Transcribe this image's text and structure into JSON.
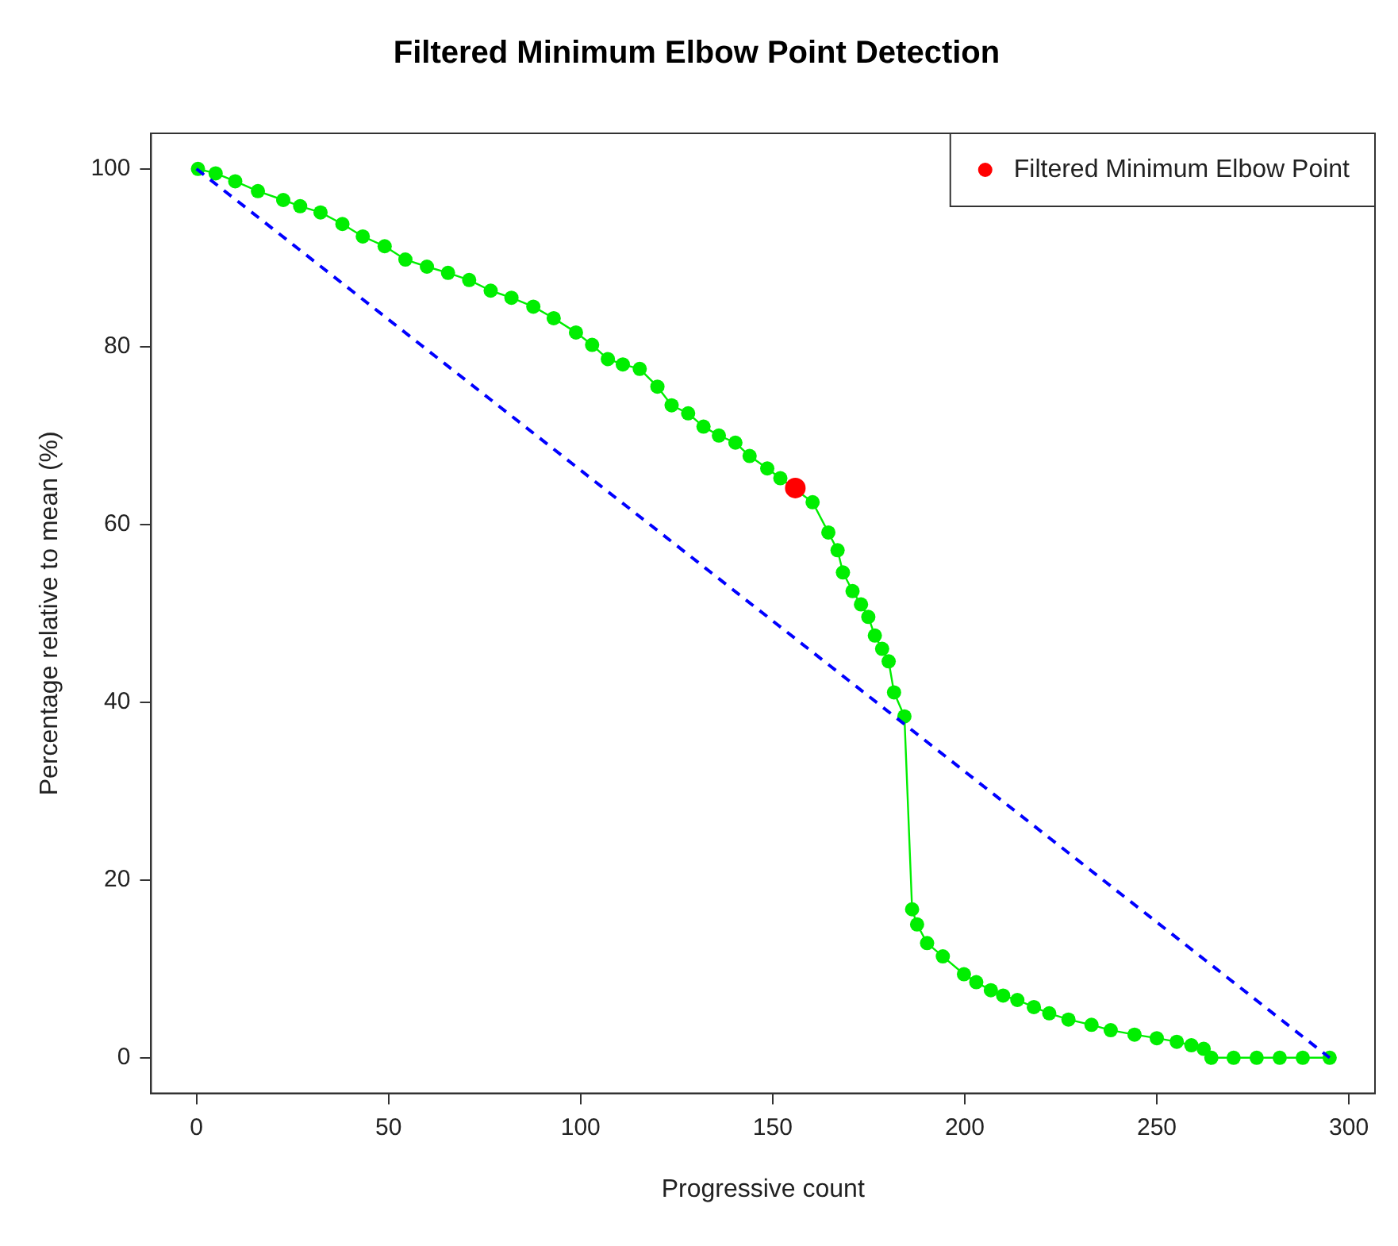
{
  "chart_data": {
    "type": "line",
    "title": "Filtered Minimum Elbow Point Detection",
    "xlabel": "Progressive count",
    "ylabel": "Percentage relative to mean (%)",
    "xlim": [
      -11.8,
      306.8
    ],
    "ylim": [
      -4,
      104
    ],
    "xticks": [
      0,
      50,
      100,
      150,
      200,
      250,
      300
    ],
    "yticks": [
      0,
      20,
      40,
      60,
      80,
      100
    ],
    "grid": false,
    "legend": "top right",
    "series": [
      {
        "type": "line",
        "color": "#00ee00",
        "marker": "circle",
        "line_style": "solid",
        "x": [
          0.4,
          5,
          10.1,
          16,
          22.6,
          27,
          32.3,
          38,
          43.3,
          49,
          54.4,
          60,
          65.5,
          71,
          76.6,
          82,
          87.7,
          93,
          98.8,
          103,
          107.1,
          111,
          115.4,
          120,
          123.7,
          128,
          132,
          136,
          140.3,
          144,
          148.6,
          152,
          160.4,
          164.5,
          166.9,
          168.3,
          170.8,
          173,
          174.9,
          176.6,
          178.5,
          180.2,
          181.6,
          184.3,
          186.3,
          187.6,
          190.2,
          194.3,
          199.8,
          203,
          206.8,
          210,
          213.7,
          218,
          222,
          227,
          233,
          238,
          244.2,
          250,
          255.2,
          259,
          262.2,
          264.2,
          270,
          276,
          282,
          288,
          295
        ],
        "values": [
          100,
          99.5,
          98.6,
          97.5,
          96.5,
          95.8,
          95.1,
          93.8,
          92.4,
          91.3,
          89.8,
          89,
          88.3,
          87.5,
          86.3,
          85.5,
          84.5,
          83.2,
          81.6,
          80.2,
          78.6,
          78,
          77.5,
          75.5,
          73.4,
          72.5,
          71,
          70,
          69.2,
          67.7,
          66.3,
          65.2,
          62.5,
          59.1,
          57.1,
          54.6,
          52.5,
          51,
          49.6,
          47.5,
          46,
          44.6,
          41.1,
          38.4,
          16.7,
          15,
          12.9,
          11.4,
          9.4,
          8.5,
          7.6,
          7,
          6.5,
          5.7,
          5,
          4.3,
          3.7,
          3.1,
          2.6,
          2.2,
          1.8,
          1.4,
          1,
          0,
          0,
          0,
          0,
          0,
          0
        ]
      },
      {
        "type": "line",
        "color": "#0000ff",
        "marker": "none",
        "line_style": "dashed",
        "x": [
          0,
          295
        ],
        "values": [
          100,
          0
        ]
      },
      {
        "type": "scatter",
        "name": "Filtered Minimum Elbow Point",
        "color": "#ff0000",
        "marker": "circle",
        "x": [
          155.9
        ],
        "values": [
          64.1
        ]
      }
    ]
  }
}
